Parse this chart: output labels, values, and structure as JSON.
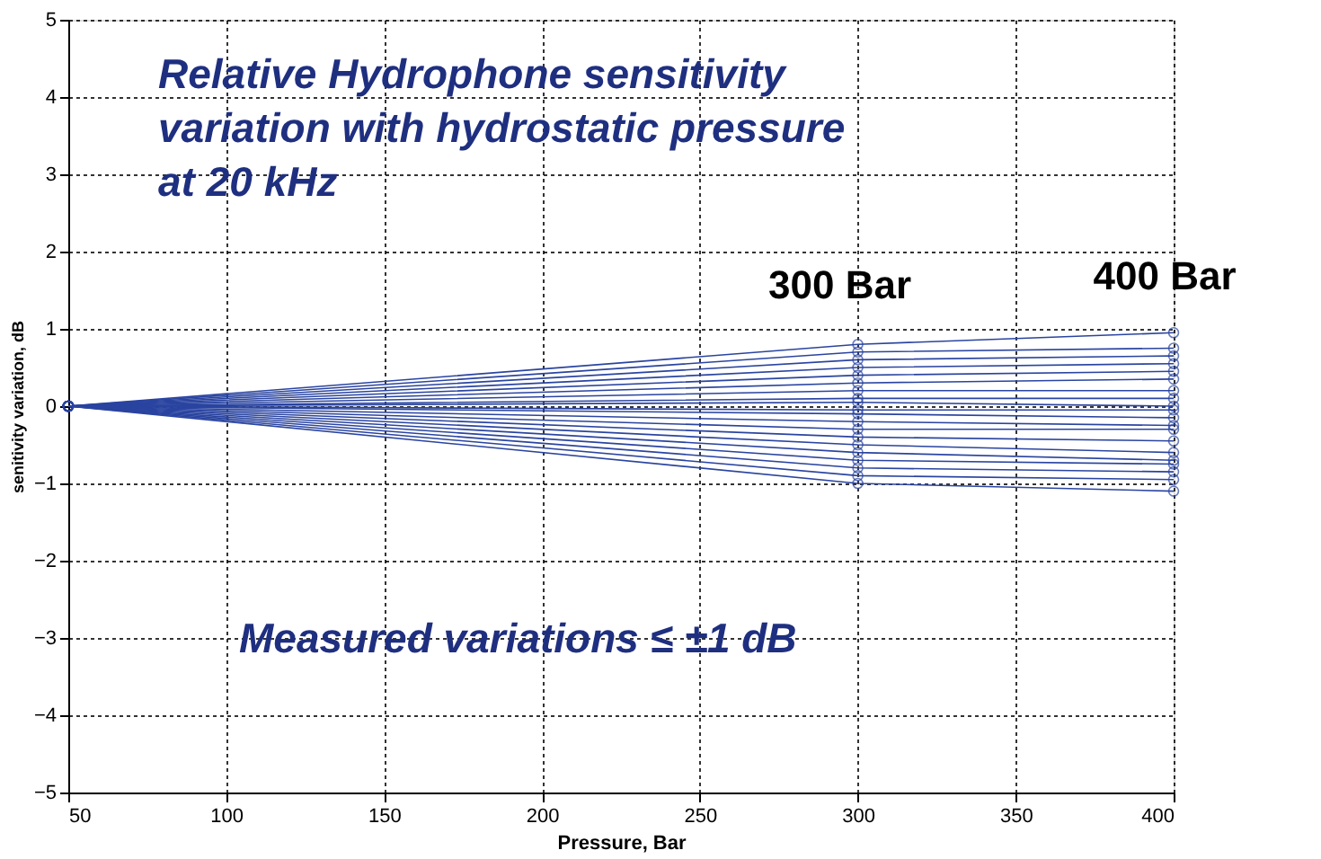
{
  "chart_data": {
    "type": "line",
    "title": "Relative Hydrophone sensitivity variation with hydrostatic pressure at 20 kHz",
    "xlabel": "Pressure, Bar",
    "ylabel": "senitivity variation, dB",
    "x": [
      50,
      300,
      400
    ],
    "series": [
      {
        "color": "#2a44a0",
        "values": [
          0,
          0.8,
          0.95
        ]
      },
      {
        "color": "#2a44a0",
        "values": [
          0,
          0.7,
          0.75
        ]
      },
      {
        "color": "#2a44a0",
        "values": [
          0,
          0.6,
          0.65
        ]
      },
      {
        "color": "#2a44a0",
        "values": [
          0,
          0.5,
          0.55
        ]
      },
      {
        "color": "#2a44a0",
        "values": [
          0,
          0.4,
          0.45
        ]
      },
      {
        "color": "#2a44a0",
        "values": [
          0,
          0.3,
          0.35
        ]
      },
      {
        "color": "#2a44a0",
        "values": [
          0,
          0.2,
          0.2
        ]
      },
      {
        "color": "#2a44a0",
        "values": [
          0,
          0.1,
          0.1
        ]
      },
      {
        "color": "#2a44a0",
        "values": [
          0,
          0.05,
          0.0
        ]
      },
      {
        "color": "#2a44a0",
        "values": [
          0,
          -0.05,
          -0.05
        ]
      },
      {
        "color": "#2a44a0",
        "values": [
          0,
          -0.1,
          -0.15
        ]
      },
      {
        "color": "#2a44a0",
        "values": [
          0,
          -0.2,
          -0.25
        ]
      },
      {
        "color": "#2a44a0",
        "values": [
          0,
          -0.3,
          -0.3
        ]
      },
      {
        "color": "#2a44a0",
        "values": [
          0,
          -0.4,
          -0.45
        ]
      },
      {
        "color": "#2a44a0",
        "values": [
          0,
          -0.5,
          -0.6
        ]
      },
      {
        "color": "#2a44a0",
        "values": [
          0,
          -0.6,
          -0.7
        ]
      },
      {
        "color": "#2a44a0",
        "values": [
          0,
          -0.7,
          -0.75
        ]
      },
      {
        "color": "#2a44a0",
        "values": [
          0,
          -0.8,
          -0.85
        ]
      },
      {
        "color": "#2a44a0",
        "values": [
          0,
          -0.9,
          -0.95
        ]
      },
      {
        "color": "#2a44a0",
        "values": [
          0,
          -1.0,
          -1.1
        ]
      }
    ],
    "xlim": [
      50,
      400
    ],
    "xticks": [
      50,
      100,
      150,
      200,
      250,
      300,
      350,
      400
    ],
    "ylim": [
      -5,
      5
    ],
    "yticks": [
      -5,
      -4,
      -3,
      -2,
      -1,
      0,
      1,
      2,
      3,
      4,
      5
    ],
    "grid": true,
    "marker": "circle",
    "line_style": "solid",
    "annotations": [
      "300 Bar",
      "400 Bar",
      "Measured variations ≤ ±1 dB"
    ]
  }
}
